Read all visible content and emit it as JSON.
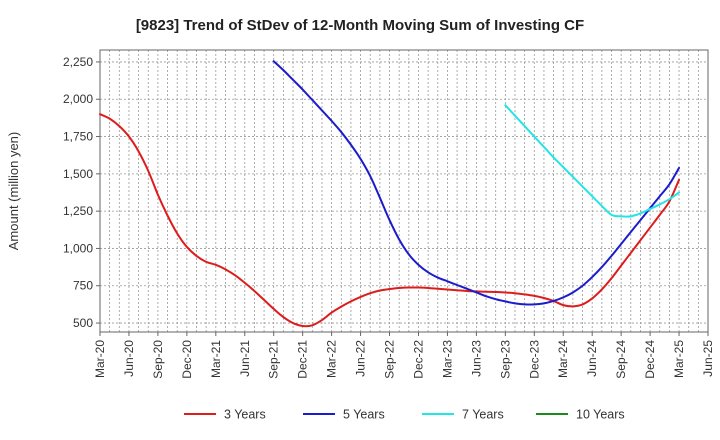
{
  "chart_data": {
    "type": "line",
    "title": "[9823]  Trend of StDev of 12-Month Moving Sum of Investing CF",
    "xlabel": "",
    "ylabel": "Amount (million yen)",
    "ylim": [
      440,
      2330
    ],
    "yticks": [
      500,
      750,
      1000,
      1250,
      1500,
      1750,
      2000,
      2250
    ],
    "ytick_labels": [
      "500",
      "750",
      "1,000",
      "1,250",
      "1,500",
      "1,750",
      "2,000",
      "2,250"
    ],
    "x_categories": [
      "Mar-20",
      "Jun-20",
      "Sep-20",
      "Dec-20",
      "Mar-21",
      "Jun-21",
      "Sep-21",
      "Dec-21",
      "Mar-22",
      "Jun-22",
      "Sep-22",
      "Dec-22",
      "Mar-23",
      "Jun-23",
      "Sep-23",
      "Dec-23",
      "Mar-24",
      "Jun-24",
      "Sep-24",
      "Dec-24",
      "Mar-25",
      "Jun-25"
    ],
    "grid": true,
    "legend_position": "bottom",
    "series": [
      {
        "name": "3 Years",
        "color": "#dd1c1c",
        "x": [
          "Mar-20",
          "Apr-20",
          "May-20",
          "Jun-20",
          "Jul-20",
          "Aug-20",
          "Sep-20",
          "Oct-20",
          "Nov-20",
          "Dec-20",
          "Jan-21",
          "Feb-21",
          "Mar-21",
          "Apr-21",
          "May-21",
          "Jun-21",
          "Jul-21",
          "Aug-21",
          "Sep-21",
          "Oct-21",
          "Nov-21",
          "Dec-21",
          "Jan-22",
          "Feb-22",
          "Mar-22",
          "Apr-22",
          "May-22",
          "Jun-22",
          "Jul-22",
          "Aug-22",
          "Sep-22",
          "Oct-22",
          "Nov-22",
          "Dec-22",
          "Jan-23",
          "Feb-23",
          "Mar-23",
          "Apr-23",
          "May-23",
          "Jun-23",
          "Jul-23",
          "Aug-23",
          "Sep-23",
          "Oct-23",
          "Nov-23",
          "Dec-23",
          "Jan-24",
          "Feb-24",
          "Mar-24",
          "Apr-24",
          "May-24",
          "Jun-24",
          "Jul-24",
          "Aug-24",
          "Sep-24",
          "Oct-24",
          "Nov-24",
          "Dec-24",
          "Jan-25",
          "Feb-25",
          "Mar-25"
        ],
        "values": [
          1900,
          1870,
          1820,
          1750,
          1650,
          1520,
          1360,
          1220,
          1100,
          1010,
          950,
          910,
          890,
          860,
          820,
          770,
          715,
          655,
          595,
          540,
          500,
          480,
          485,
          520,
          570,
          610,
          645,
          675,
          700,
          718,
          728,
          735,
          738,
          738,
          735,
          730,
          725,
          720,
          715,
          712,
          710,
          708,
          705,
          700,
          692,
          682,
          668,
          648,
          620,
          612,
          625,
          665,
          725,
          800,
          885,
          970,
          1055,
          1140,
          1225,
          1315,
          1460
        ]
      },
      {
        "name": "5 Years",
        "color": "#1c1ccc",
        "x": [
          "Sep-21",
          "Oct-21",
          "Nov-21",
          "Dec-21",
          "Jan-22",
          "Feb-22",
          "Mar-22",
          "Apr-22",
          "May-22",
          "Jun-22",
          "Jul-22",
          "Aug-22",
          "Sep-22",
          "Oct-22",
          "Nov-22",
          "Dec-22",
          "Jan-23",
          "Feb-23",
          "Mar-23",
          "Apr-23",
          "May-23",
          "Jun-23",
          "Jul-23",
          "Aug-23",
          "Sep-23",
          "Oct-23",
          "Nov-23",
          "Dec-23",
          "Jan-24",
          "Feb-24",
          "Mar-24",
          "Apr-24",
          "May-24",
          "Jun-24",
          "Jul-24",
          "Aug-24",
          "Sep-24",
          "Oct-24",
          "Nov-24",
          "Dec-24",
          "Jan-25",
          "Feb-25",
          "Mar-25"
        ],
        "values": [
          2255,
          2195,
          2130,
          2065,
          1995,
          1925,
          1855,
          1780,
          1695,
          1600,
          1485,
          1340,
          1190,
          1060,
          960,
          890,
          840,
          805,
          780,
          755,
          730,
          705,
          680,
          660,
          645,
          632,
          625,
          625,
          632,
          648,
          672,
          705,
          750,
          808,
          875,
          950,
          1030,
          1110,
          1190,
          1270,
          1350,
          1430,
          1540
        ]
      },
      {
        "name": "7 Years",
        "color": "#22e5e5",
        "x": [
          "Sep-23",
          "Oct-23",
          "Nov-23",
          "Dec-23",
          "Jan-24",
          "Feb-24",
          "Mar-24",
          "Apr-24",
          "May-24",
          "Jun-24",
          "Jul-24",
          "Aug-24",
          "Sep-24",
          "Oct-24",
          "Nov-24",
          "Dec-24",
          "Jan-25",
          "Feb-25",
          "Mar-25"
        ],
        "values": [
          1960,
          1890,
          1820,
          1750,
          1680,
          1610,
          1545,
          1480,
          1415,
          1350,
          1285,
          1225,
          1215,
          1215,
          1235,
          1265,
          1295,
          1330,
          1375
        ]
      },
      {
        "name": "10 Years",
        "color": "#1c8a1c",
        "x": [],
        "values": []
      }
    ]
  }
}
